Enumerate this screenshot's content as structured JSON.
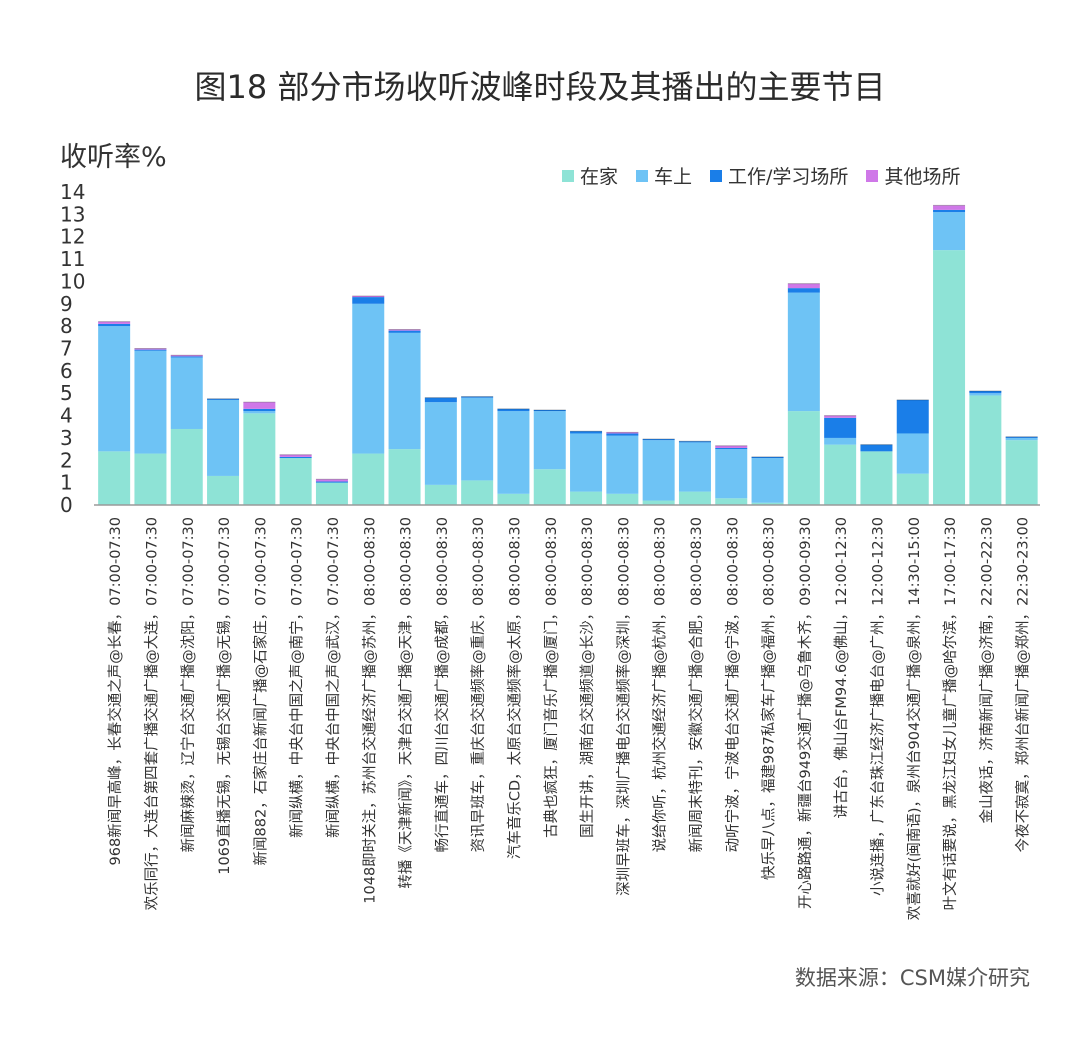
{
  "chart_data": {
    "type": "bar",
    "stacked": true,
    "title": "图18 部分市场收听波峰时段及其播出的主要节目",
    "ylabel": "收听率%",
    "source": "数据来源：CSM媒介研究",
    "ylim": [
      0,
      14
    ],
    "yticks": [
      0,
      1,
      2,
      3,
      4,
      5,
      6,
      7,
      8,
      9,
      10,
      11,
      12,
      13,
      14
    ],
    "legend_position": "top-right",
    "colors": {
      "在家": "#8ee3d6",
      "车上": "#6ec3f5",
      "工作/学习场所": "#1a7ee8",
      "其他场所": "#cf78e8"
    },
    "categories": [
      "968新闻早高峰，长春交通之声@长春，07:00-07:30",
      "欢乐同行，大连台第四套广播交通广播@大连，07:00-07:30",
      "新闻麻辣烫，辽宁台交通广播@沈阳，07:00-07:30",
      "1069直播无锡，无锡台交通广播@无锡，07:00-07:30",
      "新闻882，石家庄台新闻广播@石家庄，07:00-07:30",
      "新闻纵横，中央台中国之声@南宁，07:00-07:30",
      "新闻纵横，中央台中国之声@武汉，07:00-07:30",
      "1048即时关注，苏州台交通经济广播@苏州，08:00-08:30",
      "转播《天津新闻》，天津台交通广播@天津，08:00-08:30",
      "畅行直通车，四川台交通广播@成都，08:00-08:30",
      "资讯早班车，重庆台交通频率@重庆，08:00-08:30",
      "汽车音乐CD，太原台交通频率@太原，08:00-08:30",
      "古典也疯狂，厦门音乐广播@厦门，08:00-08:30",
      "国生开讲，湖南台交通频道@长沙，08:00-08:30",
      "深圳早班车，深圳广播电台交通频率@深圳，08:00-08:30",
      "说给你听，杭州交通经济广播@杭州，08:00-08:30",
      "新闻周末特刊，安徽交通广播@合肥，08:00-08:30",
      "动听宁波，宁波电台交通广播@宁波，08:00-08:30",
      "快乐早八点，福建987私家车广播@福州，08:00-08:30",
      "开心路路通，新疆台949交通广播@乌鲁木齐，09:00-09:30",
      "讲古台，佛山台FM94.6@佛山，12:00-12:30",
      "小说连播，广东台珠江经济广播电台@广州，12:00-12:30",
      "欢喜就好(闽南语)，泉州台904交通广播@泉州，14:30-15:00",
      "叶文有话要说，黑龙江妇女儿童广播@哈尔滨，17:00-17:30",
      "金山夜话，济南新闻广播@济南，22:00-22:30",
      "今夜不寂寞，郑州台新闻广播@郑州，22:30-23:00"
    ],
    "series": [
      {
        "name": "在家",
        "values": [
          2.4,
          2.3,
          3.4,
          1.3,
          4.1,
          2.1,
          1.0,
          2.3,
          2.5,
          0.9,
          1.1,
          0.5,
          1.6,
          0.6,
          0.5,
          0.2,
          0.6,
          0.3,
          0.1,
          4.2,
          2.7,
          2.4,
          1.4,
          11.4,
          4.9,
          2.9
        ]
      },
      {
        "name": "车上",
        "values": [
          5.6,
          4.6,
          3.2,
          3.4,
          0.1,
          0.0,
          0.0,
          6.7,
          5.2,
          3.7,
          3.7,
          3.7,
          2.6,
          2.6,
          2.6,
          2.7,
          2.2,
          2.2,
          2.0,
          5.3,
          0.3,
          0.0,
          1.8,
          1.7,
          0.1,
          0.1
        ]
      },
      {
        "name": "工作/学习场所",
        "values": [
          0.1,
          0.05,
          0.05,
          0.05,
          0.1,
          0.05,
          0.05,
          0.3,
          0.1,
          0.2,
          0.05,
          0.1,
          0.05,
          0.1,
          0.1,
          0.05,
          0.05,
          0.05,
          0.05,
          0.2,
          0.9,
          0.3,
          1.5,
          0.1,
          0.1,
          0.05
        ]
      },
      {
        "name": "其他场所",
        "values": [
          0.1,
          0.05,
          0.05,
          0.0,
          0.3,
          0.1,
          0.1,
          0.05,
          0.05,
          0.0,
          0.0,
          0.0,
          0.0,
          0.0,
          0.05,
          0.0,
          0.0,
          0.1,
          0.0,
          0.2,
          0.1,
          0.0,
          0.0,
          0.2,
          0.0,
          0.0
        ]
      }
    ]
  }
}
